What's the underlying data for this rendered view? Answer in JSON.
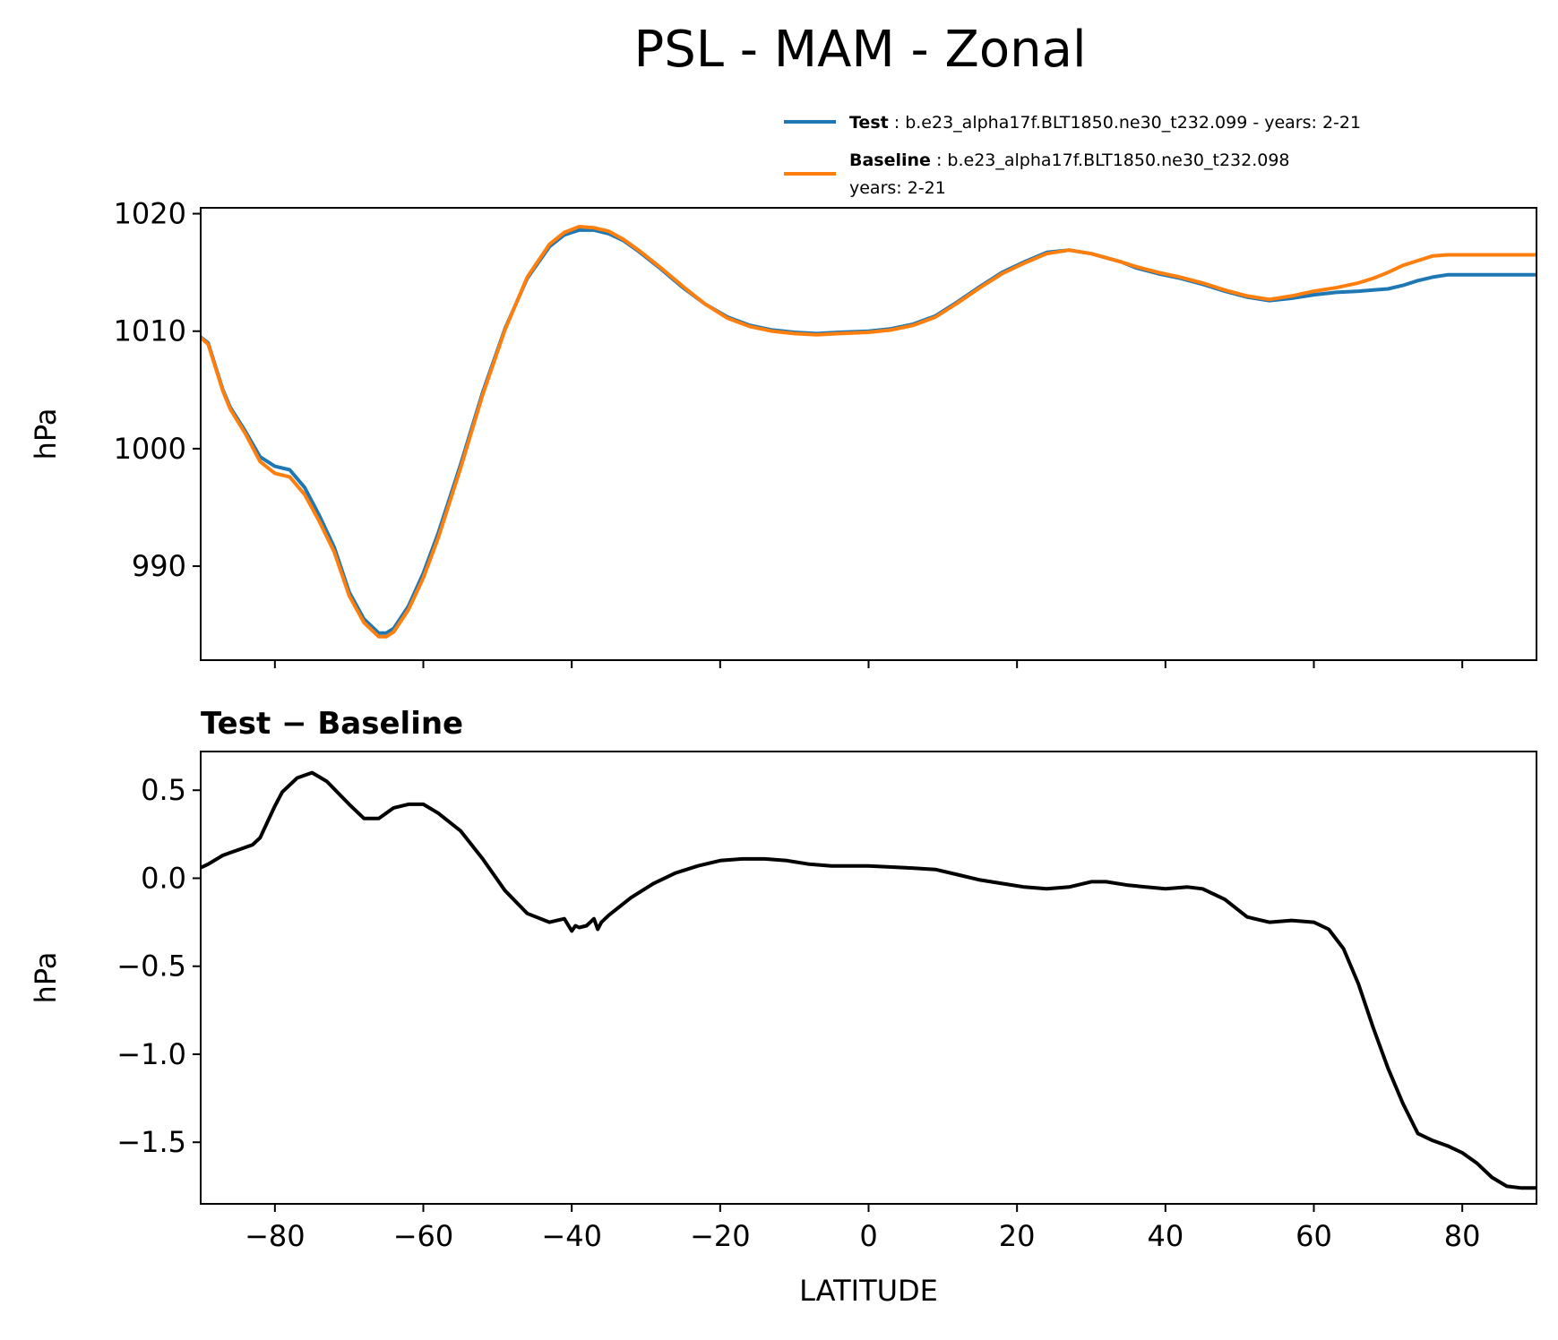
{
  "title": "PSL - MAM - Zonal",
  "colors": {
    "test": "#1f77b4",
    "baseline": "#ff7f0e",
    "diff": "#000000"
  },
  "legend": {
    "test_name": "Test",
    "test_sep": " : ",
    "test_desc": "b.e23_alpha17f.BLT1850.ne30_t232.099 - years: 2-21",
    "baseline_name": "Baseline",
    "baseline_sep": " : ",
    "baseline_desc": "b.e23_alpha17f.BLT1850.ne30_t232.098",
    "baseline_desc2": "years: 2-21"
  },
  "chart_data": [
    {
      "type": "line",
      "title": "",
      "xlabel": "",
      "ylabel": "hPa",
      "xlim": [
        -90,
        90
      ],
      "ylim": [
        982,
        1020.5
      ],
      "yticks": [
        990,
        1000,
        1010,
        1020
      ],
      "ytick_labels": [
        "990",
        "1000",
        "1010",
        "1020"
      ],
      "xticks": [
        -80,
        -60,
        -40,
        -20,
        0,
        20,
        40,
        60,
        80
      ],
      "grid": false,
      "legend_position": "above-right",
      "series": [
        {
          "name": "Test",
          "x": [
            -90,
            -89,
            -87,
            -86,
            -84,
            -82,
            -80,
            -78,
            -76,
            -74,
            -72,
            -70,
            -68,
            -66,
            -65,
            -64,
            -62,
            -60,
            -58,
            -55,
            -52,
            -49,
            -46,
            -43,
            -41,
            -39,
            -37,
            -35,
            -33,
            -31,
            -28,
            -25,
            -22,
            -19,
            -16,
            -13,
            -10,
            -7,
            -4,
            0,
            3,
            6,
            9,
            12,
            15,
            18,
            21,
            24,
            27,
            30,
            34,
            36,
            39,
            42,
            45,
            48,
            51,
            54,
            57,
            60,
            63,
            66,
            68,
            70,
            72,
            74,
            76,
            78,
            80,
            82,
            84,
            86,
            88,
            90
          ],
          "y": [
            1009.5,
            1009.0,
            1005.0,
            1003.5,
            1001.5,
            999.3,
            998.5,
            998.2,
            996.7,
            994.3,
            991.6,
            987.8,
            985.5,
            984.3,
            984.3,
            984.7,
            986.6,
            989.4,
            992.8,
            998.6,
            1004.8,
            1010.2,
            1014.5,
            1017.2,
            1018.2,
            1018.6,
            1018.6,
            1018.3,
            1017.7,
            1016.8,
            1015.3,
            1013.7,
            1012.3,
            1011.2,
            1010.5,
            1010.1,
            1009.9,
            1009.8,
            1009.9,
            1010.0,
            1010.2,
            1010.6,
            1011.3,
            1012.5,
            1013.8,
            1015.0,
            1015.9,
            1016.7,
            1016.9,
            1016.6,
            1015.9,
            1015.4,
            1014.9,
            1014.5,
            1014.0,
            1013.4,
            1012.9,
            1012.6,
            1012.8,
            1013.1,
            1013.3,
            1013.4,
            1013.5,
            1013.6,
            1013.9,
            1014.3,
            1014.6,
            1014.8,
            1014.8,
            1014.8,
            1014.8,
            1014.8,
            1014.8,
            1014.8
          ]
        },
        {
          "name": "Baseline",
          "x": [
            -90,
            -89,
            -87,
            -86,
            -84,
            -82,
            -80,
            -78,
            -76,
            -74,
            -72,
            -70,
            -68,
            -66,
            -65,
            -64,
            -62,
            -60,
            -58,
            -55,
            -52,
            -49,
            -46,
            -43,
            -41,
            -39,
            -37,
            -35,
            -33,
            -31,
            -28,
            -25,
            -22,
            -19,
            -16,
            -13,
            -10,
            -7,
            -4,
            0,
            3,
            6,
            9,
            12,
            15,
            18,
            21,
            24,
            27,
            30,
            34,
            36,
            39,
            42,
            45,
            48,
            51,
            54,
            57,
            60,
            63,
            66,
            68,
            70,
            72,
            74,
            76,
            78,
            80,
            82,
            84,
            86,
            88,
            90
          ],
          "y": [
            1009.45,
            1008.9,
            1004.9,
            1003.35,
            1001.3,
            998.9,
            997.9,
            997.6,
            996.1,
            993.8,
            991.2,
            987.5,
            985.2,
            984.0,
            984.0,
            984.4,
            986.3,
            989.0,
            992.4,
            998.3,
            1004.6,
            1010.1,
            1014.6,
            1017.4,
            1018.4,
            1018.9,
            1018.8,
            1018.5,
            1017.8,
            1016.9,
            1015.4,
            1013.8,
            1012.3,
            1011.1,
            1010.4,
            1010.0,
            1009.8,
            1009.7,
            1009.8,
            1009.9,
            1010.1,
            1010.5,
            1011.2,
            1012.4,
            1013.7,
            1014.9,
            1015.8,
            1016.6,
            1016.9,
            1016.6,
            1015.9,
            1015.5,
            1015.0,
            1014.6,
            1014.1,
            1013.5,
            1013.0,
            1012.7,
            1013.0,
            1013.4,
            1013.7,
            1014.1,
            1014.5,
            1015.0,
            1015.6,
            1016.0,
            1016.4,
            1016.5,
            1016.5,
            1016.5,
            1016.5,
            1016.5,
            1016.5,
            1016.5
          ]
        }
      ]
    },
    {
      "type": "line",
      "title": "Test − Baseline",
      "xlabel": "LATITUDE",
      "ylabel": "hPa",
      "xlim": [
        -90,
        90
      ],
      "ylim": [
        -1.85,
        0.72
      ],
      "yticks": [
        -1.5,
        -1.0,
        -0.5,
        0.0,
        0.5
      ],
      "ytick_labels": [
        "−1.5",
        "−1.0",
        "−0.5",
        "0.0",
        "0.5"
      ],
      "xticks": [
        -80,
        -60,
        -40,
        -20,
        0,
        20,
        40,
        60,
        80
      ],
      "xtick_labels": [
        "−80",
        "−60",
        "−40",
        "−20",
        "0",
        "20",
        "40",
        "60",
        "80"
      ],
      "grid": false,
      "series": [
        {
          "x": [
            -90,
            -89,
            -87,
            -85,
            -83,
            -82,
            -80,
            -79,
            -77,
            -75,
            -73,
            -70,
            -68,
            -66,
            -64,
            -62,
            -60,
            -58,
            -55,
            -52,
            -49,
            -46,
            -43,
            -41,
            -40,
            -39.5,
            -39,
            -38,
            -37,
            -36.5,
            -36,
            -35,
            -32,
            -29,
            -26,
            -23,
            -20,
            -17,
            -14,
            -11,
            -8,
            -5,
            0,
            5,
            9,
            12,
            15,
            18,
            21,
            24,
            27,
            30,
            32,
            35,
            40,
            43,
            45,
            48,
            51,
            54,
            57,
            60,
            62,
            64,
            66,
            68,
            70,
            72,
            74,
            76,
            78,
            80,
            82,
            84,
            86,
            88,
            90
          ],
          "y": [
            0.06,
            0.08,
            0.13,
            0.16,
            0.19,
            0.23,
            0.41,
            0.49,
            0.57,
            0.6,
            0.55,
            0.42,
            0.34,
            0.34,
            0.4,
            0.42,
            0.42,
            0.37,
            0.27,
            0.11,
            -0.07,
            -0.2,
            -0.25,
            -0.23,
            -0.3,
            -0.27,
            -0.28,
            -0.27,
            -0.23,
            -0.29,
            -0.25,
            -0.21,
            -0.11,
            -0.03,
            0.03,
            0.07,
            0.1,
            0.11,
            0.11,
            0.1,
            0.08,
            0.07,
            0.07,
            0.06,
            0.05,
            0.02,
            -0.01,
            -0.03,
            -0.05,
            -0.06,
            -0.05,
            -0.02,
            -0.02,
            -0.04,
            -0.06,
            -0.05,
            -0.06,
            -0.12,
            -0.22,
            -0.25,
            -0.24,
            -0.25,
            -0.29,
            -0.4,
            -0.6,
            -0.85,
            -1.08,
            -1.28,
            -1.45,
            -1.49,
            -1.52,
            -1.56,
            -1.62,
            -1.7,
            -1.75,
            -1.76,
            -1.76
          ]
        }
      ]
    }
  ]
}
